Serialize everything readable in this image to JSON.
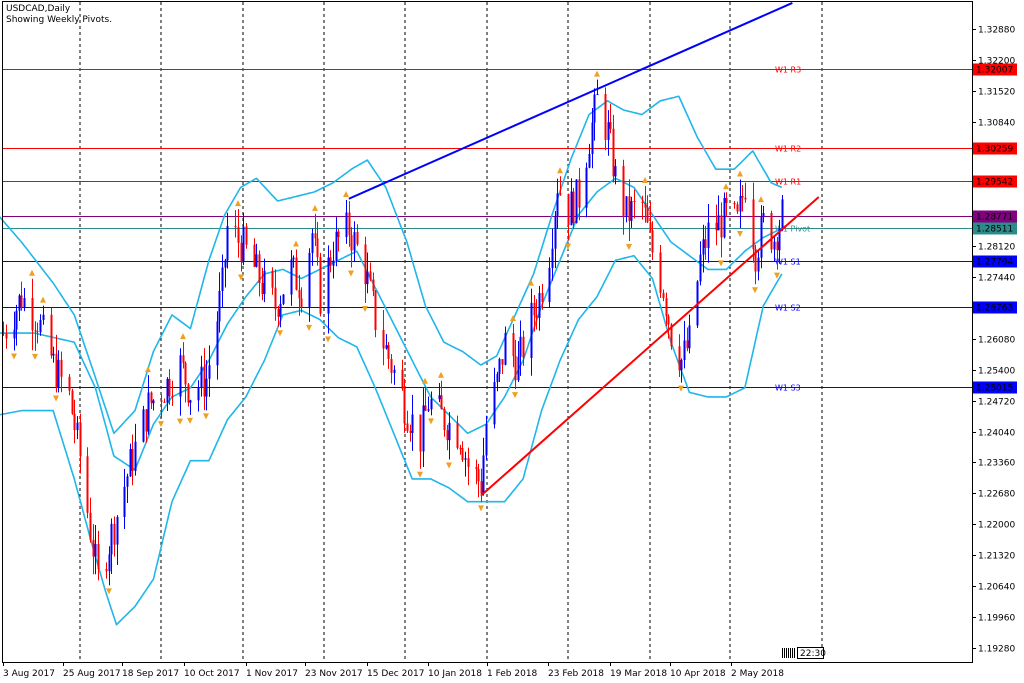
{
  "header": {
    "symbol_line": "USDCAD,Daily",
    "indicator_line": "Showing Weekly Pivots."
  },
  "time_label": "22:30",
  "colors": {
    "bull": "#0000ff",
    "bear": "#ff0000",
    "bollinger": "#1fb6ea",
    "pivot_red": "#ff0000",
    "pivot_blue": "#0000ff",
    "pivot_purple": "#800080",
    "pivot_teal": "#2e8b8b",
    "grid": "#000000",
    "fractal": "#f0a020"
  },
  "chart_data": {
    "type": "candlestick",
    "symbol": "USDCAD",
    "timeframe": "Daily",
    "title": "USDCAD,Daily",
    "subtitle": "Showing Weekly Pivots.",
    "x_tick_labels": [
      "3 Aug 2017",
      "25 Aug 2017",
      "18 Sep 2017",
      "10 Oct 2017",
      "1 Nov 2017",
      "23 Nov 2017",
      "15 Dec 2017",
      "10 Jan 2018",
      "1 Feb 2018",
      "23 Feb 2018",
      "19 Mar 2018",
      "10 Apr 2018",
      "2 May 2018"
    ],
    "y_tick_labels": [
      "1.32880",
      "1.32200",
      "1.31520",
      "1.30840",
      "1.28120",
      "1.27440",
      "1.26080",
      "1.25400",
      "1.24720",
      "1.24040",
      "1.23360",
      "1.22680",
      "1.22000",
      "1.21320",
      "1.20640",
      "1.19960",
      "1.19280"
    ],
    "ylim": [
      1.1898,
      1.3347
    ],
    "grid": "vertical dashed",
    "pivot_levels": [
      {
        "name": "W1 R3",
        "value": 1.32007,
        "label": "1.32007",
        "color": "#ff0000"
      },
      {
        "name": "W1 R2",
        "value": 1.30259,
        "label": "1.30259",
        "color": "#ff0000"
      },
      {
        "name": "W1 R1",
        "value": 1.29542,
        "label": "1.29542",
        "color": "#ff0000"
      },
      {
        "name": "Pivot",
        "value": 1.28771,
        "label": "1.28771",
        "color": "#800080"
      },
      {
        "name": "W1 Pivot",
        "value": 1.28511,
        "label": "1.28511",
        "color": "#2e8b8b"
      },
      {
        "name": "W1 S1",
        "value": 1.27794,
        "label": "1.27794",
        "color": "#0000ff"
      },
      {
        "name": "W1 S2",
        "value": 1.26763,
        "label": "1.26763",
        "color": "#0000ff"
      },
      {
        "name": "W1 S3",
        "value": 1.25015,
        "label": "1.25015",
        "color": "#0000ff"
      }
    ],
    "pivot_line_labels": [
      "W1 R3",
      "W1 R2",
      "W1 R1",
      "W1 Pivot",
      "W1 S1",
      "W1 S2",
      "W1 S3"
    ],
    "current_price": "1.28771",
    "trendlines": [
      {
        "name": "upper channel",
        "color": "#0000ff",
        "from": {
          "date": "2017-12-12",
          "price": 1.2915
        },
        "to": {
          "date": "2018-05-29",
          "price": 1.3345
        }
      },
      {
        "name": "lower channel",
        "color": "#ff0000",
        "from": {
          "date": "2018-01-31",
          "price": 1.2263
        },
        "to": {
          "date": "2018-06-08",
          "price": 1.2919
        }
      }
    ],
    "close_path": [
      [
        "2017-08-03",
        1.262
      ],
      [
        "2017-08-10",
        1.27
      ],
      [
        "2017-08-16",
        1.265
      ],
      [
        "2017-08-22",
        1.255
      ],
      [
        "2017-08-28",
        1.248
      ],
      [
        "2017-09-01",
        1.235
      ],
      [
        "2017-09-06",
        1.215
      ],
      [
        "2017-09-08",
        1.208
      ],
      [
        "2017-09-14",
        1.22
      ],
      [
        "2017-09-20",
        1.233
      ],
      [
        "2017-09-27",
        1.246
      ],
      [
        "2017-10-03",
        1.25
      ],
      [
        "2017-10-09",
        1.255
      ],
      [
        "2017-10-13",
        1.249
      ],
      [
        "2017-10-19",
        1.252
      ],
      [
        "2017-10-25",
        1.272
      ],
      [
        "2017-10-27",
        1.285
      ],
      [
        "2017-11-02",
        1.281
      ],
      [
        "2017-11-08",
        1.274
      ],
      [
        "2017-11-14",
        1.268
      ],
      [
        "2017-11-20",
        1.276
      ],
      [
        "2017-11-24",
        1.272
      ],
      [
        "2017-11-28",
        1.284
      ],
      [
        "2017-12-01",
        1.27
      ],
      [
        "2017-12-06",
        1.281
      ],
      [
        "2017-12-12",
        1.285
      ],
      [
        "2017-12-18",
        1.276
      ],
      [
        "2017-12-22",
        1.265
      ],
      [
        "2017-12-28",
        1.255
      ],
      [
        "2018-01-03",
        1.245
      ],
      [
        "2018-01-08",
        1.239
      ],
      [
        "2018-01-11",
        1.247
      ],
      [
        "2018-01-17",
        1.243
      ],
      [
        "2018-01-23",
        1.24
      ],
      [
        "2018-01-26",
        1.233
      ],
      [
        "2018-01-31",
        1.229
      ],
      [
        "2018-02-02",
        1.242
      ],
      [
        "2018-02-06",
        1.251
      ],
      [
        "2018-02-09",
        1.26
      ],
      [
        "2018-02-14",
        1.255
      ],
      [
        "2018-02-19",
        1.265
      ],
      [
        "2018-02-22",
        1.27
      ],
      [
        "2018-02-26",
        1.28
      ],
      [
        "2018-03-01",
        1.295
      ],
      [
        "2018-03-05",
        1.289
      ],
      [
        "2018-03-09",
        1.292
      ],
      [
        "2018-03-13",
        1.305
      ],
      [
        "2018-03-16",
        1.313
      ],
      [
        "2018-03-20",
        1.306
      ],
      [
        "2018-03-23",
        1.296
      ],
      [
        "2018-03-27",
        1.288
      ],
      [
        "2018-04-02",
        1.29
      ],
      [
        "2018-04-05",
        1.282
      ],
      [
        "2018-04-10",
        1.272
      ],
      [
        "2018-04-13",
        1.262
      ],
      [
        "2018-04-17",
        1.256
      ],
      [
        "2018-04-20",
        1.26
      ],
      [
        "2018-04-24",
        1.278
      ],
      [
        "2018-04-27",
        1.284
      ],
      [
        "2018-05-01",
        1.286
      ],
      [
        "2018-05-04",
        1.288
      ],
      [
        "2018-05-08",
        1.286
      ],
      [
        "2018-05-11",
        1.295
      ],
      [
        "2018-05-15",
        1.28
      ],
      [
        "2018-05-18",
        1.286
      ],
      [
        "2018-05-22",
        1.283
      ],
      [
        "2018-05-25",
        1.288
      ]
    ],
    "bollinger_bands": {
      "upper": [
        [
          "2017-08-01",
          1.288
        ],
        [
          "2017-08-10",
          1.282
        ],
        [
          "2017-08-22",
          1.273
        ],
        [
          "2017-08-30",
          1.266
        ],
        [
          "2017-09-06",
          1.254
        ],
        [
          "2017-09-14",
          1.24
        ],
        [
          "2017-09-22",
          1.245
        ],
        [
          "2017-09-29",
          1.258
        ],
        [
          "2017-10-06",
          1.266
        ],
        [
          "2017-10-13",
          1.263
        ],
        [
          "2017-10-20",
          1.278
        ],
        [
          "2017-10-26",
          1.288
        ],
        [
          "2017-11-01",
          1.294
        ],
        [
          "2017-11-07",
          1.296
        ],
        [
          "2017-11-15",
          1.291
        ],
        [
          "2017-11-22",
          1.292
        ],
        [
          "2017-11-29",
          1.293
        ],
        [
          "2017-12-06",
          1.295
        ],
        [
          "2017-12-13",
          1.298
        ],
        [
          "2017-12-19",
          1.3
        ],
        [
          "2017-12-26",
          1.294
        ],
        [
          "2018-01-03",
          1.282
        ],
        [
          "2018-01-10",
          1.268
        ],
        [
          "2018-01-17",
          1.26
        ],
        [
          "2018-01-24",
          1.258
        ],
        [
          "2018-01-31",
          1.255
        ],
        [
          "2018-02-06",
          1.257
        ],
        [
          "2018-02-13",
          1.266
        ],
        [
          "2018-02-20",
          1.275
        ],
        [
          "2018-02-27",
          1.288
        ],
        [
          "2018-03-06",
          1.3
        ],
        [
          "2018-03-13",
          1.31
        ],
        [
          "2018-03-20",
          1.313
        ],
        [
          "2018-03-26",
          1.311
        ],
        [
          "2018-04-02",
          1.31
        ],
        [
          "2018-04-09",
          1.313
        ],
        [
          "2018-04-16",
          1.314
        ],
        [
          "2018-04-23",
          1.305
        ],
        [
          "2018-04-30",
          1.298
        ],
        [
          "2018-05-07",
          1.298
        ],
        [
          "2018-05-14",
          1.302
        ],
        [
          "2018-05-21",
          1.295
        ],
        [
          "2018-05-25",
          1.294
        ]
      ],
      "middle": [
        [
          "2017-08-01",
          1.262
        ],
        [
          "2017-08-15",
          1.262
        ],
        [
          "2017-08-30",
          1.26
        ],
        [
          "2017-09-07",
          1.25
        ],
        [
          "2017-09-14",
          1.235
        ],
        [
          "2017-09-22",
          1.232
        ],
        [
          "2017-09-29",
          1.242
        ],
        [
          "2017-10-06",
          1.248
        ],
        [
          "2017-10-13",
          1.25
        ],
        [
          "2017-10-20",
          1.256
        ],
        [
          "2017-10-27",
          1.264
        ],
        [
          "2017-11-03",
          1.27
        ],
        [
          "2017-11-10",
          1.275
        ],
        [
          "2017-11-17",
          1.276
        ],
        [
          "2017-11-24",
          1.274
        ],
        [
          "2017-12-01",
          1.276
        ],
        [
          "2017-12-08",
          1.278
        ],
        [
          "2017-12-15",
          1.28
        ],
        [
          "2017-12-22",
          1.272
        ],
        [
          "2017-12-29",
          1.264
        ],
        [
          "2018-01-05",
          1.256
        ],
        [
          "2018-01-12",
          1.248
        ],
        [
          "2018-01-19",
          1.244
        ],
        [
          "2018-01-26",
          1.24
        ],
        [
          "2018-02-02",
          1.242
        ],
        [
          "2018-02-09",
          1.248
        ],
        [
          "2018-02-16",
          1.256
        ],
        [
          "2018-02-23",
          1.268
        ],
        [
          "2018-03-02",
          1.278
        ],
        [
          "2018-03-09",
          1.288
        ],
        [
          "2018-03-16",
          1.293
        ],
        [
          "2018-03-23",
          1.296
        ],
        [
          "2018-03-30",
          1.294
        ],
        [
          "2018-04-06",
          1.288
        ],
        [
          "2018-04-13",
          1.282
        ],
        [
          "2018-04-20",
          1.279
        ],
        [
          "2018-04-27",
          1.276
        ],
        [
          "2018-05-04",
          1.276
        ],
        [
          "2018-05-11",
          1.28
        ],
        [
          "2018-05-18",
          1.283
        ],
        [
          "2018-05-25",
          1.285
        ]
      ],
      "lower": [
        [
          "2017-08-01",
          1.244
        ],
        [
          "2017-08-10",
          1.245
        ],
        [
          "2017-08-22",
          1.245
        ],
        [
          "2017-08-30",
          1.23
        ],
        [
          "2017-09-06",
          1.215
        ],
        [
          "2017-09-11",
          1.205
        ],
        [
          "2017-09-15",
          1.198
        ],
        [
          "2017-09-22",
          1.202
        ],
        [
          "2017-09-29",
          1.208
        ],
        [
          "2017-10-06",
          1.225
        ],
        [
          "2017-10-13",
          1.234
        ],
        [
          "2017-10-20",
          1.234
        ],
        [
          "2017-10-27",
          1.243
        ],
        [
          "2017-11-03",
          1.248
        ],
        [
          "2017-11-10",
          1.256
        ],
        [
          "2017-11-17",
          1.266
        ],
        [
          "2017-11-24",
          1.267
        ],
        [
          "2017-12-01",
          1.265
        ],
        [
          "2017-12-08",
          1.261
        ],
        [
          "2017-12-15",
          1.259
        ],
        [
          "2017-12-22",
          1.25
        ],
        [
          "2017-12-29",
          1.24
        ],
        [
          "2018-01-05",
          1.23
        ],
        [
          "2018-01-12",
          1.23
        ],
        [
          "2018-01-19",
          1.228
        ],
        [
          "2018-01-26",
          1.225
        ],
        [
          "2018-02-02",
          1.225
        ],
        [
          "2018-02-09",
          1.225
        ],
        [
          "2018-02-16",
          1.23
        ],
        [
          "2018-02-23",
          1.245
        ],
        [
          "2018-03-02",
          1.256
        ],
        [
          "2018-03-09",
          1.265
        ],
        [
          "2018-03-16",
          1.27
        ],
        [
          "2018-03-23",
          1.278
        ],
        [
          "2018-03-30",
          1.279
        ],
        [
          "2018-04-06",
          1.274
        ],
        [
          "2018-04-13",
          1.26
        ],
        [
          "2018-04-20",
          1.249
        ],
        [
          "2018-04-27",
          1.248
        ],
        [
          "2018-05-04",
          1.248
        ],
        [
          "2018-05-11",
          1.25
        ],
        [
          "2018-05-18",
          1.268
        ],
        [
          "2018-05-25",
          1.275
        ]
      ]
    }
  }
}
